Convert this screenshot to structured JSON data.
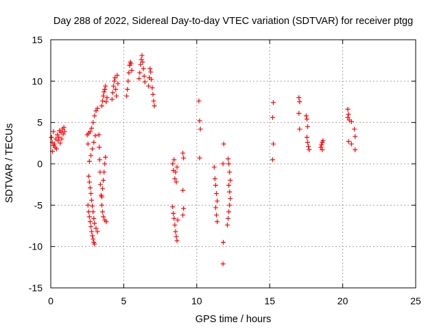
{
  "chart_data": {
    "type": "scatter",
    "title": "Day 288 of 2022, Sidereal Day-to-day VTEC variation (SDTVAR) for receiver ptgg",
    "xlabel": "GPS time / hours",
    "ylabel": "SDTVAR / TECUs",
    "xlim": [
      0,
      25
    ],
    "ylim": [
      -15,
      15
    ],
    "xticks": [
      0,
      5,
      10,
      15,
      20,
      25
    ],
    "yticks": [
      -15,
      -10,
      -5,
      0,
      5,
      10,
      15
    ],
    "grid": true,
    "marker": "+",
    "marker_color": "#ff0000",
    "series": [
      {
        "name": "SDTVAR",
        "points": [
          [
            0.05,
            3.2
          ],
          [
            0.1,
            2.6
          ],
          [
            0.12,
            1.5
          ],
          [
            0.18,
            3.9
          ],
          [
            0.2,
            2.2
          ],
          [
            0.25,
            2.4
          ],
          [
            0.3,
            2.0
          ],
          [
            0.35,
            3.0
          ],
          [
            0.4,
            1.8
          ],
          [
            0.45,
            3.5
          ],
          [
            0.5,
            2.8
          ],
          [
            0.55,
            3.2
          ],
          [
            0.6,
            4.0
          ],
          [
            0.65,
            2.5
          ],
          [
            0.7,
            3.8
          ],
          [
            0.75,
            3.0
          ],
          [
            0.8,
            4.2
          ],
          [
            0.85,
            3.6
          ],
          [
            0.9,
            4.4
          ],
          [
            0.95,
            3.9
          ],
          [
            2.5,
            3.5
          ],
          [
            2.55,
            2.4
          ],
          [
            2.6,
            3.7
          ],
          [
            2.65,
            0.3
          ],
          [
            2.7,
            3.9
          ],
          [
            2.75,
            1.0
          ],
          [
            2.8,
            4.3
          ],
          [
            2.85,
            1.8
          ],
          [
            2.9,
            5.0
          ],
          [
            2.95,
            2.6
          ],
          [
            3.0,
            5.8
          ],
          [
            3.05,
            3.4
          ],
          [
            3.1,
            6.4
          ],
          [
            3.2,
            6.7
          ],
          [
            2.6,
            -1.5
          ],
          [
            2.65,
            -2.2
          ],
          [
            2.7,
            -2.9
          ],
          [
            2.75,
            -3.6
          ],
          [
            2.8,
            -4.4
          ],
          [
            2.85,
            -5.1
          ],
          [
            2.9,
            -5.8
          ],
          [
            2.95,
            -6.6
          ],
          [
            3.0,
            -7.2
          ],
          [
            3.1,
            -7.8
          ],
          [
            3.2,
            -8.2
          ],
          [
            2.55,
            -5.0
          ],
          [
            2.6,
            -5.8
          ],
          [
            2.65,
            -6.4
          ],
          [
            2.7,
            -7.0
          ],
          [
            2.75,
            -7.6
          ],
          [
            2.8,
            -8.2
          ],
          [
            2.85,
            -8.7
          ],
          [
            2.9,
            -9.1
          ],
          [
            2.95,
            -9.5
          ],
          [
            3.0,
            -9.7
          ],
          [
            3.3,
            3.5
          ],
          [
            3.32,
            2.0
          ],
          [
            3.35,
            0.5
          ],
          [
            3.38,
            -1.0
          ],
          [
            3.4,
            -2.5
          ],
          [
            3.45,
            -3.8
          ],
          [
            3.5,
            -5.0
          ],
          [
            3.55,
            -5.8
          ],
          [
            3.6,
            -6.4
          ],
          [
            3.7,
            -6.8
          ],
          [
            3.8,
            -7.0
          ],
          [
            3.5,
            -4.0
          ],
          [
            3.55,
            -3.0
          ],
          [
            3.6,
            -2.0
          ],
          [
            3.65,
            -1.0
          ],
          [
            3.7,
            0.0
          ],
          [
            3.75,
            0.8
          ],
          [
            3.5,
            7.0
          ],
          [
            3.55,
            7.6
          ],
          [
            3.6,
            8.2
          ],
          [
            3.65,
            8.7
          ],
          [
            3.7,
            9.0
          ],
          [
            3.75,
            9.4
          ],
          [
            3.8,
            7.5
          ],
          [
            3.85,
            8.0
          ],
          [
            4.2,
            7.8
          ],
          [
            4.25,
            8.6
          ],
          [
            4.3,
            9.4
          ],
          [
            4.35,
            10.0
          ],
          [
            4.4,
            10.4
          ],
          [
            4.45,
            9.0
          ],
          [
            4.5,
            8.2
          ],
          [
            4.55,
            10.7
          ],
          [
            4.6,
            9.7
          ],
          [
            5.2,
            8.2
          ],
          [
            5.25,
            9.0
          ],
          [
            5.3,
            10.0
          ],
          [
            5.35,
            11.0
          ],
          [
            5.4,
            11.9
          ],
          [
            5.45,
            12.3
          ],
          [
            5.5,
            12.1
          ],
          [
            5.55,
            11.3
          ],
          [
            6.05,
            10.3
          ],
          [
            6.1,
            11.0
          ],
          [
            6.15,
            12.0
          ],
          [
            6.2,
            12.6
          ],
          [
            6.25,
            13.1
          ],
          [
            6.3,
            12.3
          ],
          [
            6.35,
            11.5
          ],
          [
            6.4,
            10.6
          ],
          [
            6.45,
            9.9
          ],
          [
            6.7,
            9.4
          ],
          [
            6.75,
            10.4
          ],
          [
            6.8,
            11.5
          ],
          [
            6.85,
            11.1
          ],
          [
            6.9,
            10.2
          ],
          [
            6.95,
            9.2
          ],
          [
            7.0,
            8.4
          ],
          [
            7.05,
            7.6
          ],
          [
            7.1,
            7.0
          ],
          [
            8.35,
            0.0
          ],
          [
            8.4,
            -0.8
          ],
          [
            8.45,
            0.5
          ],
          [
            8.5,
            -1.8
          ],
          [
            8.55,
            -1.0
          ],
          [
            8.6,
            -2.2
          ],
          [
            8.65,
            -0.4
          ],
          [
            8.35,
            -5.2
          ],
          [
            8.4,
            -6.0
          ],
          [
            8.45,
            -6.6
          ],
          [
            8.5,
            -7.4
          ],
          [
            8.55,
            -8.2
          ],
          [
            8.6,
            -8.8
          ],
          [
            8.65,
            -9.3
          ],
          [
            8.7,
            -6.8
          ],
          [
            9.05,
            1.3
          ],
          [
            9.1,
            0.7
          ],
          [
            9.05,
            -3.2
          ],
          [
            9.1,
            -5.4
          ],
          [
            9.05,
            -6.2
          ],
          [
            10.15,
            7.6
          ],
          [
            10.2,
            5.2
          ],
          [
            10.25,
            4.2
          ],
          [
            10.2,
            0.7
          ],
          [
            11.2,
            -0.4
          ],
          [
            11.25,
            -1.8
          ],
          [
            11.3,
            -2.6
          ],
          [
            11.35,
            -3.6
          ],
          [
            11.4,
            -4.5
          ],
          [
            11.3,
            -5.3
          ],
          [
            11.35,
            -6.2
          ],
          [
            11.4,
            -7.0
          ],
          [
            11.85,
            2.4
          ],
          [
            11.8,
            0.0
          ],
          [
            11.82,
            -9.5
          ],
          [
            11.8,
            -12.1
          ],
          [
            12.15,
            0.6
          ],
          [
            12.2,
            0.0
          ],
          [
            12.25,
            -1.0
          ],
          [
            12.3,
            -2.0
          ],
          [
            12.2,
            -2.6
          ],
          [
            12.25,
            -3.4
          ],
          [
            12.3,
            -4.2
          ],
          [
            12.25,
            -5.0
          ],
          [
            12.2,
            -5.8
          ],
          [
            12.15,
            -6.6
          ],
          [
            12.1,
            -7.4
          ],
          [
            15.25,
            7.4
          ],
          [
            15.2,
            5.6
          ],
          [
            15.25,
            2.4
          ],
          [
            15.2,
            0.5
          ],
          [
            17.0,
            8.0
          ],
          [
            17.05,
            7.5
          ],
          [
            17.0,
            6.1
          ],
          [
            17.05,
            4.2
          ],
          [
            17.5,
            5.8
          ],
          [
            17.55,
            5.4
          ],
          [
            17.6,
            4.5
          ],
          [
            17.55,
            3.2
          ],
          [
            17.6,
            2.6
          ],
          [
            17.65,
            2.1
          ],
          [
            17.7,
            1.7
          ],
          [
            18.5,
            2.0
          ],
          [
            18.55,
            2.3
          ],
          [
            18.6,
            2.6
          ],
          [
            18.65,
            2.8
          ],
          [
            18.6,
            1.7
          ],
          [
            20.35,
            6.6
          ],
          [
            20.4,
            6.0
          ],
          [
            20.35,
            5.6
          ],
          [
            20.45,
            5.3
          ],
          [
            20.6,
            5.1
          ],
          [
            20.8,
            4.2
          ],
          [
            20.85,
            3.3
          ],
          [
            20.4,
            2.7
          ],
          [
            20.6,
            2.4
          ],
          [
            20.85,
            1.7
          ]
        ]
      }
    ]
  }
}
